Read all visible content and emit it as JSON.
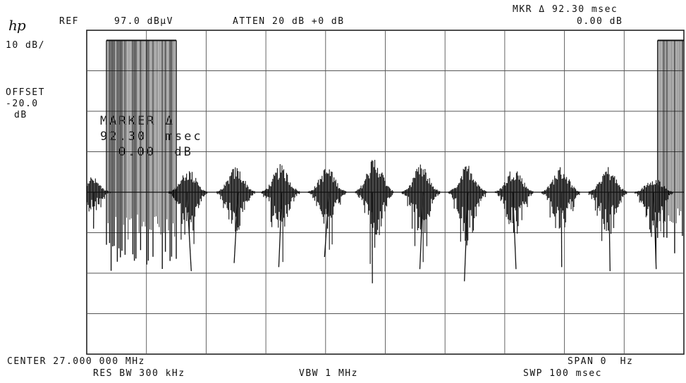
{
  "header": {
    "brand": "hp",
    "ref_label": "REF",
    "ref_value": "97.0 dBµV",
    "atten": "ATTEN 20 dB +0 dB",
    "marker_top": "MKR Δ 92.30 msec",
    "marker_db": "0.00 dB"
  },
  "left_panel": {
    "scale": "10 dB/",
    "offset_label": "OFFSET",
    "offset_value": "-20.0",
    "offset_unit": "dB"
  },
  "marker_overlay": {
    "line1": "MARKER Δ",
    "line2": "92.30  msec",
    "line3": "0.00  dB"
  },
  "footer": {
    "center": "CENTER 27.000 000 MHz",
    "span": "SPAN 0  Hz",
    "res_bw": "RES BW 300 kHz",
    "vbw": "VBW 1 MHz",
    "swp": "SWP 100 msec"
  },
  "chart_data": {
    "type": "line",
    "x_axis": {
      "range_msec": [
        0,
        100
      ],
      "divisions": 10
    },
    "y_axis": {
      "ref_dBuV": 97.0,
      "scale_db_per_div": 10,
      "divisions": 8
    },
    "grid": true,
    "series": [
      {
        "color": "#111111",
        "baseline_division_from_top": 4.0,
        "wide_bursts_msec": [
          {
            "start": 3.3,
            "end": 15.0,
            "top_division": 0.25,
            "bottom_division": 5.95
          },
          {
            "start": 95.6,
            "end": 100.0,
            "top_division": 0.25,
            "bottom_division": 5.6
          }
        ],
        "pulse_centers_msec": [
          0.8,
          17.0,
          25.0,
          32.5,
          40.3,
          48.2,
          56.0,
          63.8,
          71.6,
          79.4,
          87.3,
          95.0
        ],
        "pulse_top_division": [
          3.6,
          3.4,
          3.35,
          3.3,
          3.35,
          3.1,
          3.3,
          3.3,
          3.35,
          3.35,
          3.35,
          3.6
        ],
        "pulse_bottom_division": [
          4.9,
          5.95,
          5.75,
          5.85,
          5.6,
          6.25,
          5.9,
          6.2,
          5.9,
          5.85,
          5.95,
          5.9
        ]
      }
    ]
  }
}
